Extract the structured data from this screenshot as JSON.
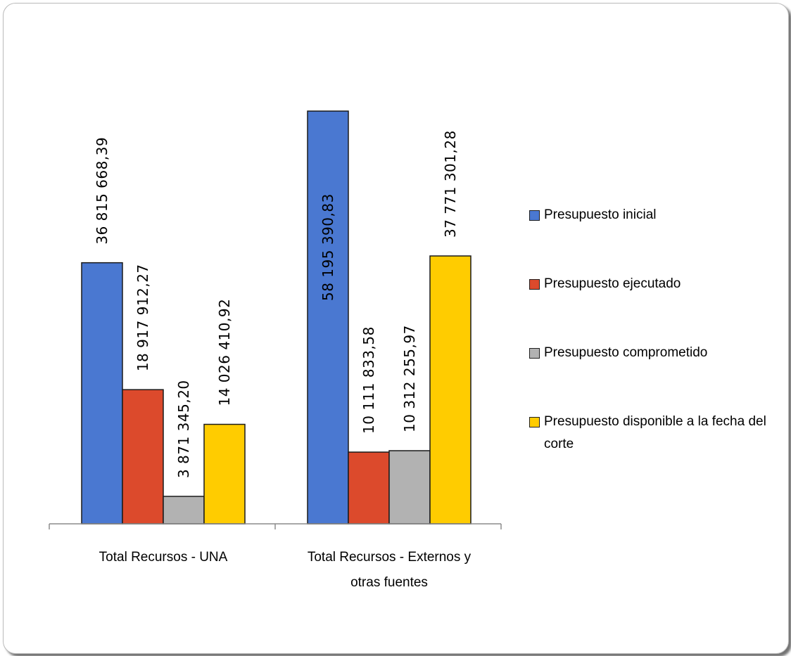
{
  "chart_data": {
    "type": "bar",
    "categories": [
      "Total Recursos - UNA",
      "Total Recursos - Externos y otras fuentes"
    ],
    "series": [
      {
        "name": "Presupuesto inicial",
        "color": "#4a78d1",
        "values": [
          36815668.39,
          58195390.83
        ],
        "labels": [
          "36 815 668,39",
          "58 195 390,83"
        ]
      },
      {
        "name": "Presupuesto ejecutado",
        "color": "#dc4a2c",
        "values": [
          18917912.27,
          10111833.58
        ],
        "labels": [
          "18 917 912,27",
          "10 111 833,58"
        ]
      },
      {
        "name": "Presupuesto comprometido",
        "color": "#b2b2b2",
        "values": [
          3871345.2,
          10312255.97
        ],
        "labels": [
          "3 871 345,20",
          "10 312 255,97"
        ]
      },
      {
        "name": "Presupuesto disponible a la fecha del corte",
        "color": "#ffcc00",
        "values": [
          14026410.92,
          37771301.28
        ],
        "labels": [
          "14 026 410,92",
          "37 771 301,28"
        ]
      }
    ],
    "ylim": [
      0,
      59000000
    ],
    "grid": false,
    "legend_position": "right"
  }
}
